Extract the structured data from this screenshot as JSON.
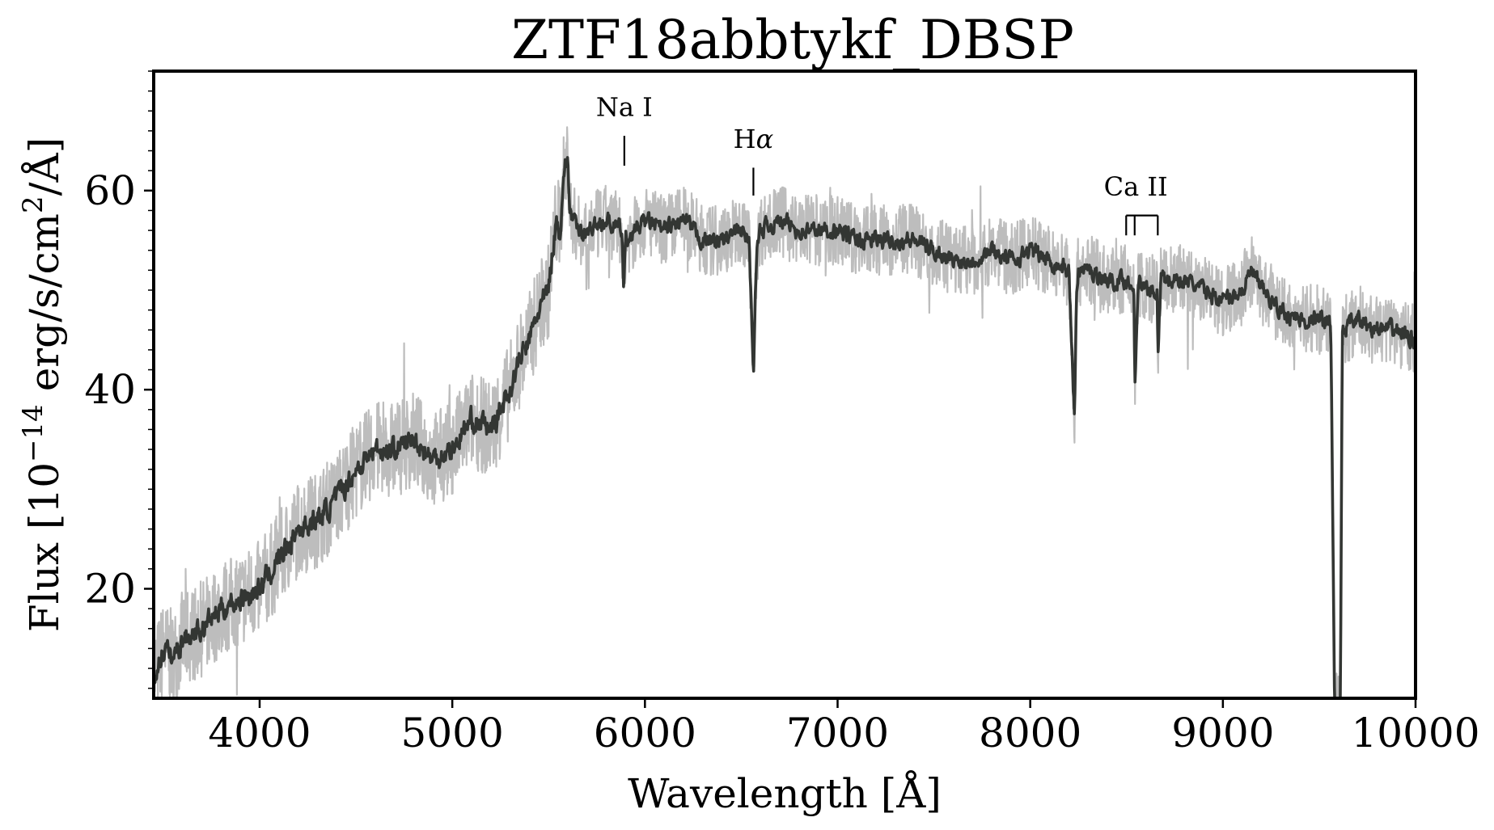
{
  "chart_data": {
    "type": "line",
    "title": "ZTF18abbtykf_DBSP",
    "xlabel": "Wavelength [Å]",
    "ylabel_prefix": "Flux [10",
    "ylabel_exp1": "−14",
    "ylabel_mid": " erg/s/cm",
    "ylabel_exp2": "2",
    "ylabel_suffix": "/Å]",
    "xlim": [
      3450,
      10000
    ],
    "ylim": [
      9,
      72
    ],
    "xticks": [
      4000,
      5000,
      6000,
      7000,
      8000,
      9000,
      10000
    ],
    "yticks": [
      20,
      40,
      60
    ],
    "y_minor_step": 2,
    "grid": false,
    "series": [
      {
        "role": "raw",
        "color": "#bdbdbd",
        "note_source": "spectrum anchors",
        "x": [
          3450,
          3500,
          3550,
          3600,
          3700,
          3800,
          3900,
          4000,
          4100,
          4200,
          4300,
          4400,
          4500,
          4600,
          4700,
          4800,
          4900,
          5000,
          5100,
          5200,
          5300,
          5350,
          5400,
          5450,
          5500,
          5520,
          5540,
          5560,
          5580,
          5600,
          5610,
          5650,
          5700,
          5800,
          5880,
          5890,
          5900,
          6000,
          6100,
          6200,
          6300,
          6400,
          6500,
          6540,
          6563,
          6580,
          6600,
          6700,
          6800,
          6900,
          7000,
          7100,
          7200,
          7300,
          7400,
          7500,
          7600,
          7700,
          7800,
          7900,
          8000,
          8100,
          8200,
          8230,
          8240,
          8250,
          8300,
          8400,
          8500,
          8540,
          8542,
          8560,
          8600,
          8660,
          8662,
          8680,
          8700,
          8800,
          8900,
          9000,
          9100,
          9150,
          9200,
          9300,
          9400,
          9500,
          9560,
          9580,
          9600,
          9610,
          9620,
          9700,
          9800,
          9900,
          10000
        ],
        "y": [
          11,
          14,
          13,
          15,
          16,
          18,
          19,
          20,
          23,
          26,
          27,
          29,
          32,
          34,
          34,
          35,
          33,
          34,
          37,
          36,
          40,
          43,
          45,
          48,
          50,
          54,
          57,
          56,
          62,
          63,
          58,
          56,
          56,
          57,
          56,
          50,
          55,
          57,
          56,
          57,
          55,
          55,
          56,
          55,
          42,
          54,
          56,
          57,
          56,
          56,
          56,
          55,
          55,
          55,
          55,
          54,
          53,
          53,
          54,
          53,
          54,
          53,
          52,
          37,
          50,
          52,
          52,
          51,
          51,
          50,
          40,
          51,
          50,
          50,
          42,
          52,
          51,
          51,
          50,
          49,
          50,
          52,
          50,
          48,
          47,
          47,
          47,
          8,
          8,
          8,
          46,
          47,
          46,
          46,
          45
        ]
      },
      {
        "role": "smoothed",
        "color": "#333633",
        "x": [
          3450,
          3500,
          3550,
          3600,
          3700,
          3800,
          3900,
          4000,
          4100,
          4200,
          4300,
          4400,
          4500,
          4600,
          4700,
          4800,
          4900,
          5000,
          5100,
          5200,
          5300,
          5350,
          5400,
          5450,
          5500,
          5520,
          5540,
          5560,
          5580,
          5600,
          5610,
          5650,
          5700,
          5800,
          5880,
          5890,
          5900,
          6000,
          6100,
          6200,
          6300,
          6400,
          6500,
          6540,
          6563,
          6580,
          6600,
          6700,
          6800,
          6900,
          7000,
          7100,
          7200,
          7300,
          7400,
          7500,
          7600,
          7700,
          7800,
          7900,
          8000,
          8100,
          8200,
          8230,
          8240,
          8250,
          8300,
          8400,
          8500,
          8540,
          8542,
          8560,
          8600,
          8660,
          8662,
          8680,
          8700,
          8800,
          8900,
          9000,
          9100,
          9150,
          9200,
          9300,
          9400,
          9500,
          9560,
          9580,
          9600,
          9610,
          9620,
          9700,
          9800,
          9900,
          10000
        ],
        "y": [
          11,
          14,
          13,
          15,
          16,
          18,
          19,
          20,
          23,
          26,
          27,
          29,
          32,
          34,
          34,
          35,
          33,
          34,
          37,
          36,
          40,
          43,
          45,
          48,
          50,
          54,
          57,
          56,
          62,
          63,
          58,
          56,
          56,
          57,
          56,
          50,
          55,
          57,
          56,
          57,
          55,
          55,
          56,
          55,
          42,
          54,
          56,
          57,
          56,
          56,
          56,
          55,
          55,
          55,
          55,
          54,
          53,
          53,
          54,
          53,
          54,
          53,
          52,
          37,
          50,
          52,
          52,
          51,
          51,
          50,
          40,
          51,
          50,
          50,
          42,
          52,
          51,
          51,
          50,
          49,
          50,
          52,
          50,
          48,
          47,
          47,
          47,
          8,
          8,
          8,
          46,
          47,
          46,
          46,
          45
        ]
      }
    ],
    "annotations": [
      {
        "label": "Na I",
        "kind": "single",
        "x": [
          5893
        ],
        "label_x": 5893,
        "label_y": 67.5,
        "line_top": 65.5,
        "line_bottom": 62.5
      },
      {
        "label": "H",
        "label_greek": "α",
        "kind": "single",
        "x": [
          6563
        ],
        "label_x": 6563,
        "label_y": 64.3,
        "line_top": 62.3,
        "line_bottom": 59.5
      },
      {
        "label": "Ca II",
        "kind": "multi",
        "x": [
          8498,
          8542,
          8662
        ],
        "label_x": 8548,
        "label_y": 59.5,
        "line_top": 57.5,
        "line_bottom": 55.5
      }
    ]
  }
}
